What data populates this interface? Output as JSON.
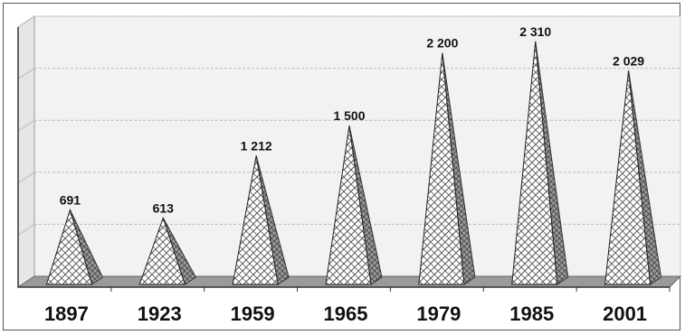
{
  "chart_data": {
    "type": "bar",
    "style": "3d-cone",
    "title": "",
    "xlabel": "",
    "ylabel": "",
    "categories": [
      "1897",
      "1923",
      "1959",
      "1965",
      "1979",
      "1985",
      "2001"
    ],
    "values": [
      691,
      613,
      1212,
      1500,
      2200,
      2310,
      2029
    ],
    "value_labels": [
      "691",
      "613",
      "1 212",
      "1 500",
      "2 200",
      "2 310",
      "2 029"
    ],
    "ylim": [
      0,
      2500
    ],
    "grid": true,
    "legend": "none",
    "colors": {
      "cone_fill": "#ffffff",
      "cone_pattern": "#555555",
      "cone_shade": "#8a8a8a",
      "floor": "#9a9a9a",
      "wall": "#f2f2f2",
      "gridline": "#bbbbbb"
    }
  }
}
